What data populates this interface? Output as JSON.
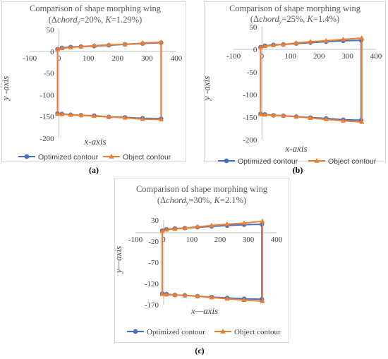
{
  "colors": {
    "optimized": "#4472C4",
    "object": "#ED7D31",
    "axis": "#bfbfbf",
    "frame": "#d9d9d9"
  },
  "chart_data": [
    {
      "id": "a",
      "type": "line",
      "caption": "(a)",
      "title": "Comparison of shape morphing wing",
      "subtitle": {
        "prefix": "(Δ",
        "var": "chord",
        "sub": "y",
        "mid": "=20%, ",
        "kvar": "K",
        "suffix": "=1.29%)"
      },
      "xlabel": "x-axis",
      "ylabel": "y -axis",
      "xticks": [
        "-100",
        "0",
        "100",
        "200",
        "300",
        "400"
      ],
      "yticks": [
        "50",
        "0",
        "-50",
        "-100",
        "-150",
        "-200"
      ],
      "xlim": [
        -100,
        400
      ],
      "ylim": [
        -200,
        50
      ],
      "legend": [
        "Optimized contour",
        "Object contour"
      ],
      "legend_position": "bottom",
      "series": [
        {
          "name": "Optimized contour",
          "marker": "circle",
          "x": [
            -5,
            10,
            40,
            75,
            120,
            170,
            225,
            285,
            348,
            348,
            285,
            225,
            170,
            120,
            75,
            40,
            10,
            -5,
            -5
          ],
          "y": [
            5,
            8,
            10,
            11,
            12,
            14,
            16,
            18,
            20,
            -155,
            -154,
            -152,
            -151,
            -148,
            -147,
            -146,
            -144,
            -143,
            5
          ]
        },
        {
          "name": "Object contour",
          "marker": "triangle",
          "x": [
            -5,
            10,
            40,
            75,
            120,
            170,
            225,
            285,
            348,
            348,
            285,
            225,
            170,
            120,
            75,
            40,
            10,
            -5,
            -5
          ],
          "y": [
            4,
            7,
            9,
            11,
            13,
            15,
            16,
            19,
            21,
            -157,
            -156,
            -153,
            -151,
            -149,
            -147,
            -146,
            -145,
            -144,
            4
          ]
        }
      ]
    },
    {
      "id": "b",
      "type": "line",
      "caption": "(b)",
      "title": "Comparison of shape morphing wing",
      "subtitle": {
        "prefix": "(Δ",
        "var": "chord",
        "sub": "y",
        "mid": "=25%, ",
        "kvar": "K",
        "suffix": "=1.4%)"
      },
      "xlabel": "x-axis",
      "ylabel": "y -axis",
      "xticks": [
        "-100",
        "0",
        "100",
        "200",
        "300",
        "400"
      ],
      "yticks": [
        "50",
        "0",
        "-50",
        "-100",
        "-150",
        "-200"
      ],
      "xlim": [
        -100,
        400
      ],
      "ylim": [
        -200,
        50
      ],
      "legend": [
        "Optimized contour",
        "Object contour"
      ],
      "legend_position": "bottom",
      "series": [
        {
          "name": "Optimized contour",
          "marker": "circle",
          "x": [
            -5,
            10,
            40,
            75,
            120,
            170,
            225,
            285,
            348,
            348,
            285,
            225,
            170,
            120,
            75,
            40,
            10,
            -5,
            -5
          ],
          "y": [
            5,
            8,
            10,
            11,
            13,
            15,
            17,
            19,
            20,
            -157,
            -156,
            -153,
            -151,
            -149,
            -147,
            -146,
            -144,
            -143,
            5
          ]
        },
        {
          "name": "Object contour",
          "marker": "triangle",
          "x": [
            -5,
            10,
            40,
            75,
            120,
            170,
            225,
            285,
            350,
            350,
            285,
            225,
            170,
            120,
            75,
            40,
            10,
            -5,
            -5
          ],
          "y": [
            4,
            7,
            9,
            11,
            14,
            17,
            19,
            22,
            25,
            -161,
            -158,
            -155,
            -152,
            -149,
            -147,
            -146,
            -145,
            -144,
            4
          ]
        }
      ]
    },
    {
      "id": "c",
      "type": "line",
      "caption": "(c)",
      "title": "Comparison of shape morphing wing",
      "subtitle": {
        "prefix": "(Δ",
        "var": "chord",
        "sub": "y",
        "mid": "=30%, ",
        "kvar": "K",
        "suffix": "=2.1%)"
      },
      "xlabel": "x—axis",
      "ylabel": "y—axis",
      "xticks": [
        "-100",
        "0",
        "100",
        "200",
        "300",
        "400"
      ],
      "yticks": [
        "30",
        "-20",
        "-70",
        "-120",
        "-170"
      ],
      "xlim": [
        -100,
        400
      ],
      "ylim": [
        -170,
        30
      ],
      "legend": [
        "Optimized contour",
        "Object contour"
      ],
      "legend_position": "bottom",
      "series": [
        {
          "name": "Optimized contour",
          "marker": "circle",
          "x": [
            -5,
            10,
            40,
            75,
            120,
            170,
            225,
            285,
            348,
            348,
            285,
            225,
            170,
            120,
            75,
            40,
            10,
            -5,
            -5
          ],
          "y": [
            5,
            8,
            10,
            11,
            13,
            15,
            17,
            19,
            20,
            -157,
            -156,
            -154,
            -152,
            -150,
            -148,
            -147,
            -145,
            -144,
            5
          ]
        },
        {
          "name": "Object contour",
          "marker": "triangle",
          "x": [
            -5,
            10,
            40,
            75,
            120,
            170,
            225,
            285,
            350,
            350,
            285,
            225,
            170,
            120,
            75,
            40,
            10,
            -5,
            -5
          ],
          "y": [
            4,
            7,
            9,
            11,
            14,
            17,
            20,
            23,
            27,
            -162,
            -159,
            -156,
            -153,
            -150,
            -148,
            -147,
            -146,
            -145,
            4
          ]
        }
      ]
    }
  ]
}
